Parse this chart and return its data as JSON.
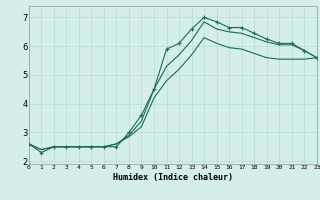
{
  "xlabel": "Humidex (Indice chaleur)",
  "bg_color": "#d4eeeb",
  "grid_color": "#b8d8d4",
  "line_color": "#1a6b5a",
  "line1_x": [
    0,
    1,
    2,
    3,
    4,
    5,
    6,
    7,
    8,
    9,
    10,
    11,
    12,
    13,
    14,
    15,
    16,
    17,
    18,
    19,
    20,
    21,
    22,
    23
  ],
  "line1_y": [
    2.6,
    2.3,
    2.5,
    2.5,
    2.5,
    2.5,
    2.5,
    2.5,
    3.0,
    3.6,
    4.5,
    5.9,
    6.1,
    6.6,
    7.0,
    6.85,
    6.65,
    6.65,
    6.45,
    6.25,
    6.1,
    6.1,
    5.85,
    5.6
  ],
  "line2_x": [
    0,
    1,
    2,
    3,
    4,
    5,
    6,
    7,
    8,
    9,
    10,
    11,
    12,
    13,
    14,
    15,
    16,
    17,
    18,
    19,
    20,
    21,
    22,
    23
  ],
  "line2_y": [
    2.6,
    2.4,
    2.5,
    2.5,
    2.5,
    2.5,
    2.5,
    2.6,
    2.9,
    3.4,
    4.5,
    5.3,
    5.7,
    6.2,
    6.85,
    6.6,
    6.5,
    6.45,
    6.3,
    6.15,
    6.05,
    6.05,
    5.85,
    5.6
  ],
  "line3_x": [
    0,
    1,
    2,
    3,
    4,
    5,
    6,
    7,
    8,
    9,
    10,
    11,
    12,
    13,
    14,
    15,
    16,
    17,
    18,
    19,
    20,
    21,
    22,
    23
  ],
  "line3_y": [
    2.6,
    2.4,
    2.5,
    2.5,
    2.5,
    2.5,
    2.5,
    2.6,
    2.85,
    3.2,
    4.2,
    4.8,
    5.2,
    5.7,
    6.3,
    6.1,
    5.95,
    5.9,
    5.75,
    5.6,
    5.55,
    5.55,
    5.55,
    5.6
  ],
  "xlim": [
    0,
    23
  ],
  "ylim": [
    1.9,
    7.4
  ],
  "yticks": [
    2,
    3,
    4,
    5,
    6,
    7
  ],
  "xticks": [
    0,
    1,
    2,
    3,
    4,
    5,
    6,
    7,
    8,
    9,
    10,
    11,
    12,
    13,
    14,
    15,
    16,
    17,
    18,
    19,
    20,
    21,
    22,
    23
  ],
  "xlabel_fontsize": 6.0,
  "xtick_fontsize": 4.5,
  "ytick_fontsize": 6.0
}
